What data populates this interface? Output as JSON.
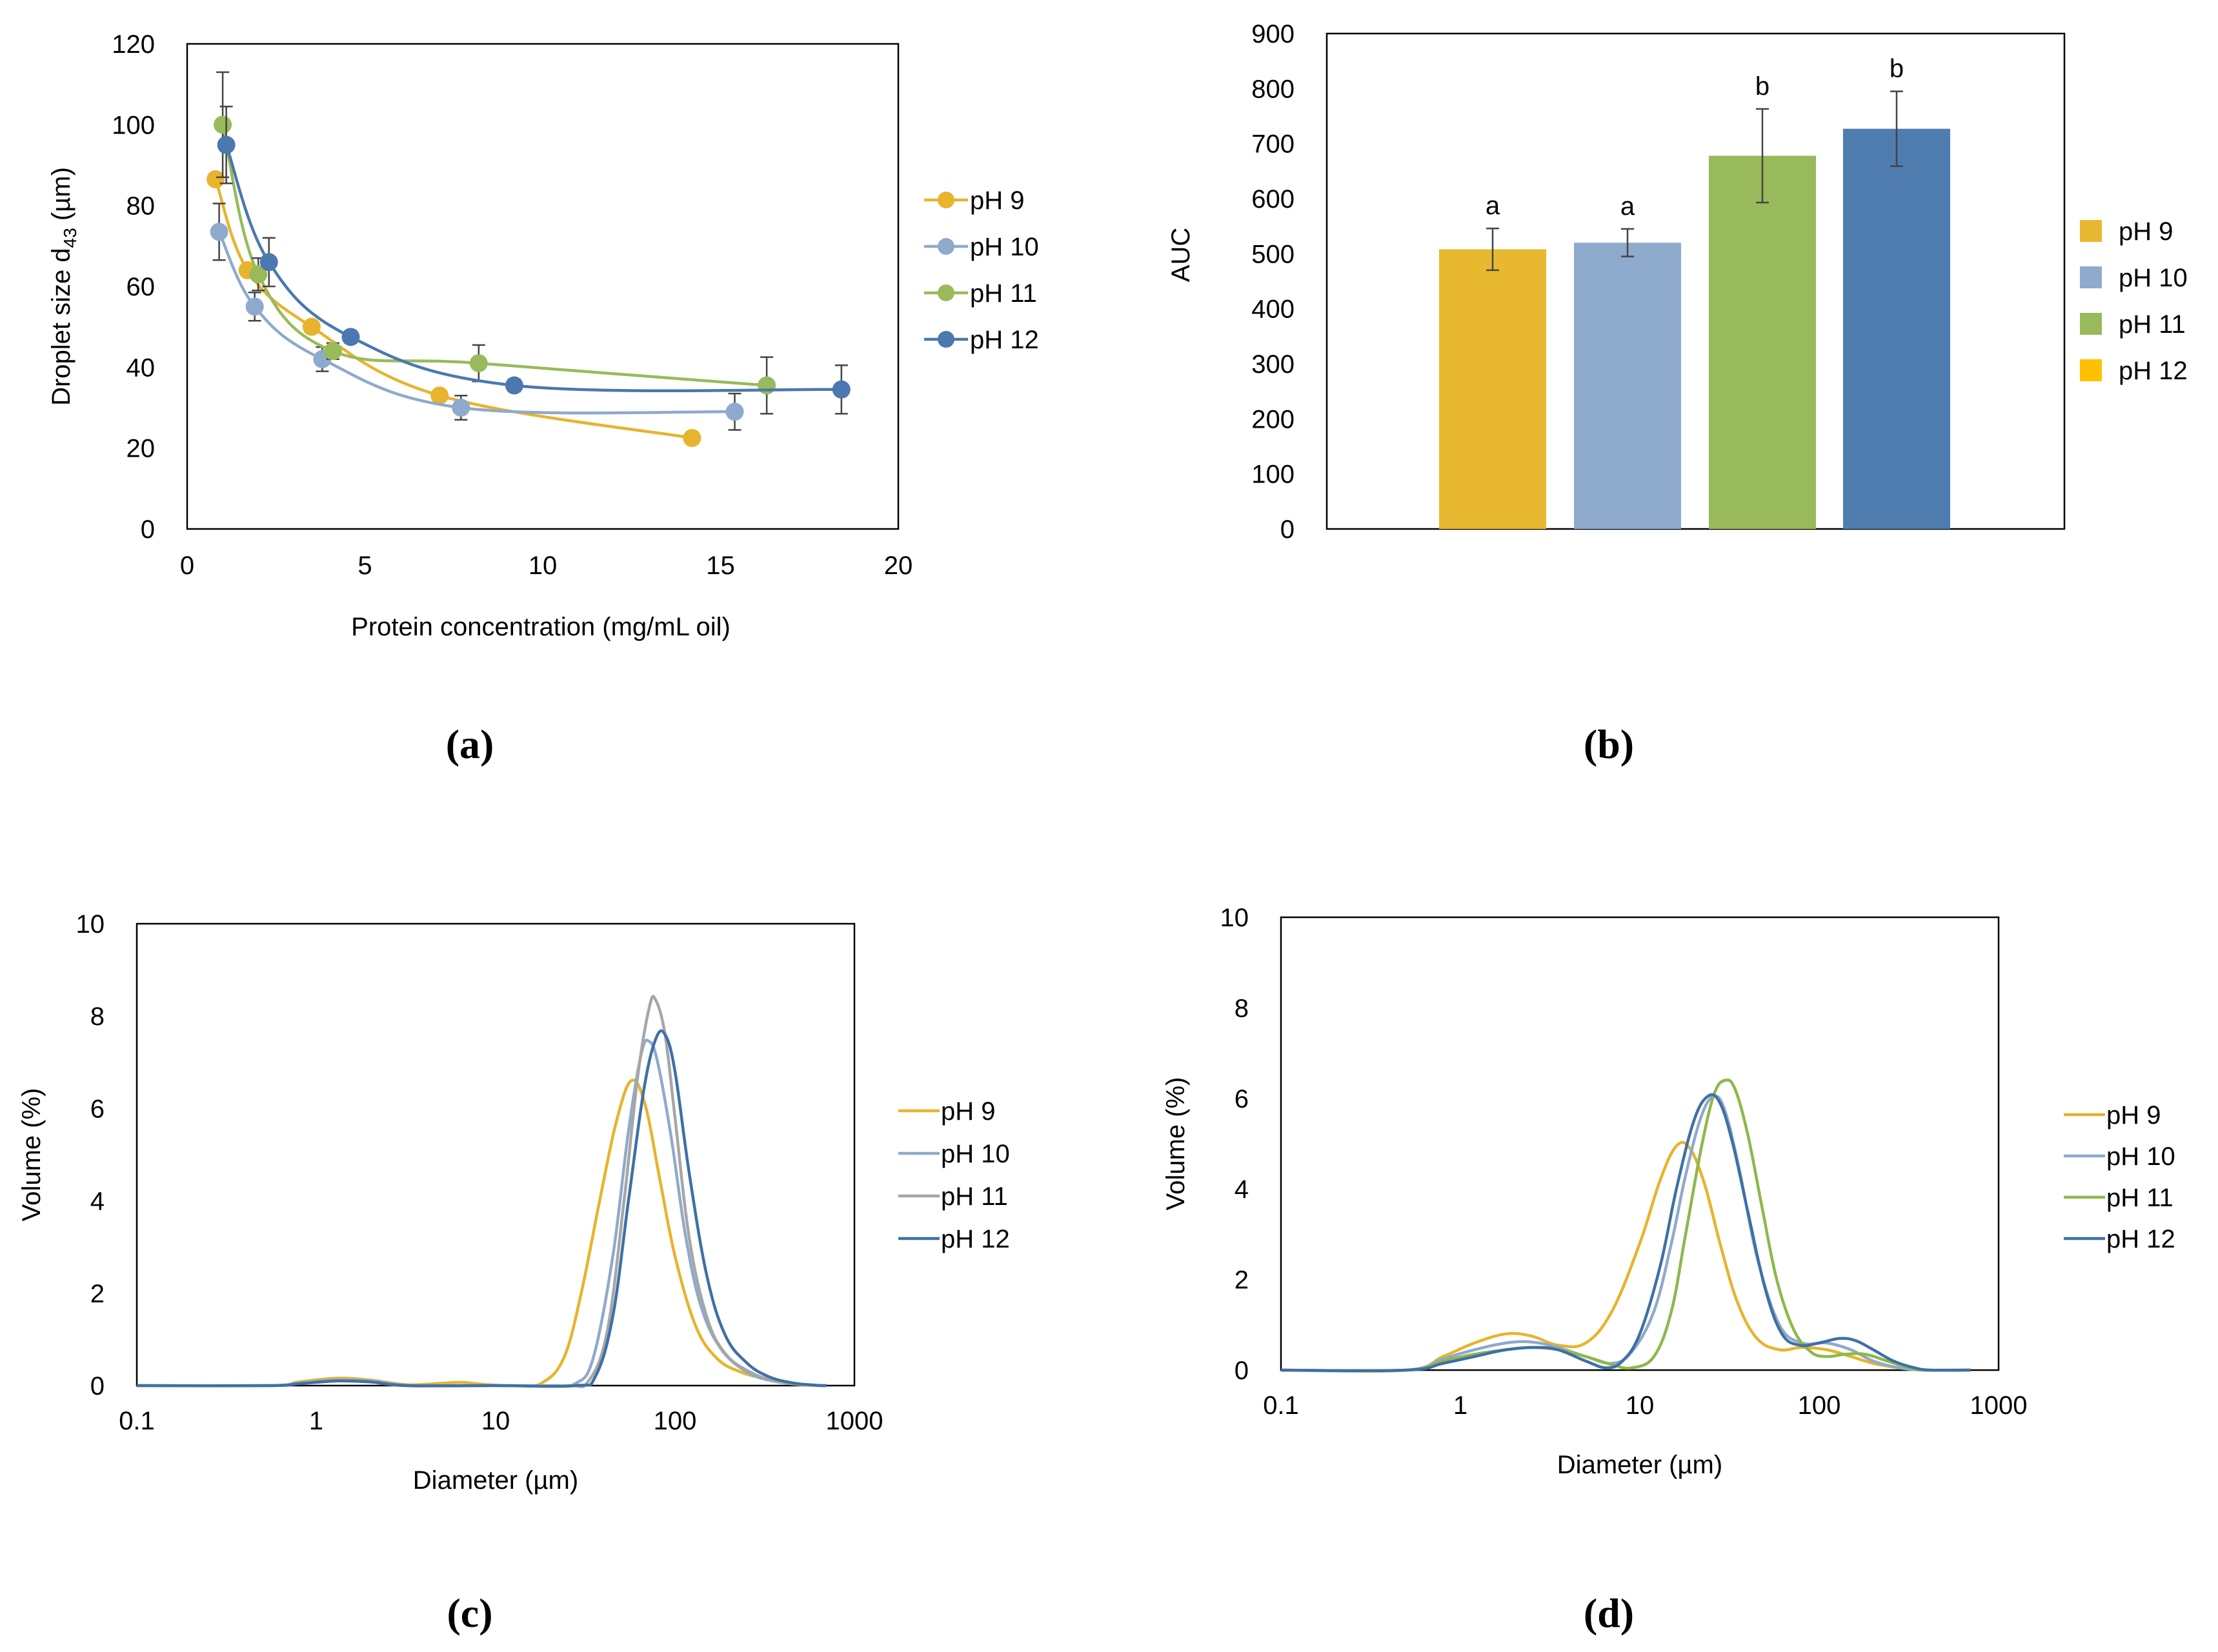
{
  "chart_data": [
    {
      "panel": "(a)",
      "type": "scatter",
      "xlabel": "Protein concentration  (mg/mL oil)",
      "ylabel_main": "Droplet size d",
      "ylabel_sub": "43",
      "ylabel_unit": " (µm)",
      "xlim": [
        0,
        20
      ],
      "ylim": [
        0,
        120
      ],
      "xticks": [
        0,
        5,
        10,
        15,
        20
      ],
      "yticks": [
        0,
        20,
        40,
        60,
        80,
        100,
        120
      ],
      "grid": false,
      "legend_position": "right",
      "series": [
        {
          "name": "pH 9",
          "color": "#E8B32D",
          "x": [
            0.8,
            1.7,
            3.5,
            7.1,
            14.2
          ],
          "y": [
            86.5,
            64,
            50,
            33,
            22.5
          ],
          "err": [
            0,
            0,
            0,
            0,
            0
          ]
        },
        {
          "name": "pH 10",
          "color": "#8EAACC",
          "x": [
            0.9,
            1.9,
            3.8,
            7.7,
            15.4
          ],
          "y": [
            73.5,
            55,
            42,
            30,
            29
          ],
          "err": [
            7,
            3.5,
            3,
            3,
            4.5
          ]
        },
        {
          "name": "pH 11",
          "color": "#99BA5A",
          "x": [
            1.0,
            2.0,
            4.1,
            8.2,
            16.3
          ],
          "y": [
            100,
            63,
            44,
            41,
            35.5
          ],
          "err": [
            13,
            4,
            2,
            4.5,
            7
          ]
        },
        {
          "name": "pH 12",
          "color": "#4A78AF",
          "x": [
            1.1,
            2.3,
            4.6,
            9.2,
            18.4
          ],
          "y": [
            95,
            66,
            47.5,
            35.5,
            34.5
          ],
          "err": [
            9.5,
            6,
            1.5,
            1.5,
            6
          ]
        }
      ]
    },
    {
      "panel": "(b)",
      "type": "bar",
      "ylabel": "AUC",
      "ylim": [
        0,
        900
      ],
      "yticks": [
        0,
        100,
        200,
        300,
        400,
        500,
        600,
        700,
        800,
        900
      ],
      "grid": false,
      "legend_position": "right",
      "categories": [
        "pH 9",
        "pH 10",
        "pH 11",
        "pH 12"
      ],
      "values": [
        508,
        520,
        678,
        727
      ],
      "errors": [
        38,
        25,
        85,
        68
      ],
      "letters": [
        "a",
        "a",
        "b",
        "b"
      ],
      "bar_colors": [
        "#E8B830",
        "#8EAACC",
        "#99BA5A",
        "#4F7DB0"
      ],
      "legend_colors": [
        "#E8B830",
        "#8EAACC",
        "#99BA5A",
        "#FFC000"
      ]
    },
    {
      "panel": "(c)",
      "type": "line",
      "xlabel": "Diameter (µm)",
      "ylabel": "Volume (%)",
      "xscale": "log",
      "xlim": [
        0.1,
        1000
      ],
      "ylim": [
        0,
        10
      ],
      "xticks": [
        0.1,
        1,
        10,
        100,
        1000
      ],
      "xticklabels": [
        "0.1",
        "1",
        "10",
        "100",
        "1000"
      ],
      "yticks": [
        0,
        2,
        4,
        6,
        8,
        10
      ],
      "grid": false,
      "legend_position": "right",
      "series": [
        {
          "name": "pH 9",
          "color": "#E8B32D",
          "x": [
            0.1,
            0.55,
            0.8,
            1.3,
            2,
            3.2,
            5,
            6.5,
            9,
            13,
            18,
            24,
            30,
            38,
            47,
            57,
            68,
            82,
            100,
            130,
            170,
            230,
            320,
            450,
            630,
            700
          ],
          "y": [
            0,
            0,
            0.08,
            0.16,
            0.12,
            0.02,
            0.05,
            0.07,
            0.02,
            0,
            0.05,
            0.6,
            2.0,
            4.0,
            5.7,
            6.6,
            6.1,
            4.5,
            2.8,
            1.3,
            0.6,
            0.3,
            0.15,
            0.05,
            0,
            0
          ]
        },
        {
          "name": "pH 10",
          "color": "#8EAACC",
          "x": [
            0.1,
            0.55,
            0.8,
            1.3,
            2,
            3.2,
            5,
            10,
            20,
            28,
            35,
            45,
            55,
            65,
            72,
            80,
            95,
            115,
            140,
            180,
            250,
            350,
            500,
            650,
            700
          ],
          "y": [
            0,
            0,
            0.06,
            0.12,
            0.1,
            0,
            0,
            0,
            0,
            0.05,
            0.6,
            2.8,
            5.5,
            7.2,
            7.45,
            7.0,
            5.4,
            3.2,
            1.7,
            0.8,
            0.3,
            0.1,
            0.03,
            0,
            0
          ]
        },
        {
          "name": "pH 11",
          "color": "#A6A6A6",
          "x": [
            0.1,
            0.55,
            0.8,
            1.3,
            2,
            3.2,
            10,
            25,
            33,
            42,
            52,
            62,
            72,
            78,
            88,
            100,
            120,
            150,
            190,
            260,
            360,
            500,
            650,
            700
          ],
          "y": [
            0,
            0,
            0.05,
            0.1,
            0.08,
            0,
            0,
            0,
            0.1,
            1.2,
            4.0,
            6.7,
            8.2,
            8.35,
            7.6,
            5.8,
            3.2,
            1.5,
            0.7,
            0.3,
            0.1,
            0.02,
            0,
            0
          ]
        },
        {
          "name": "pH 12",
          "color": "#3E70A6",
          "x": [
            0.1,
            0.55,
            0.8,
            1.3,
            2,
            3.2,
            10,
            28,
            36,
            45,
            55,
            67,
            78,
            88,
            100,
            120,
            150,
            190,
            250,
            330,
            450,
            600,
            700
          ],
          "y": [
            0,
            0,
            0.04,
            0.1,
            0.08,
            0,
            0,
            0,
            0.2,
            1.5,
            4.0,
            6.4,
            7.5,
            7.6,
            6.8,
            4.6,
            2.4,
            1.1,
            0.5,
            0.2,
            0.06,
            0.01,
            0
          ]
        }
      ]
    },
    {
      "panel": "(d)",
      "type": "line",
      "xlabel": "Diameter (µm)",
      "ylabel": "Volume (%)",
      "xscale": "log",
      "xlim": [
        0.1,
        1000
      ],
      "ylim": [
        0,
        10
      ],
      "xticks": [
        0.1,
        1,
        10,
        100,
        1000
      ],
      "xticklabels": [
        "0.1",
        "1",
        "10",
        "100",
        "1000"
      ],
      "yticks": [
        0,
        2,
        4,
        6,
        8,
        10
      ],
      "grid": false,
      "legend_position": "right",
      "series": [
        {
          "name": "pH 9",
          "color": "#E8B32D",
          "x": [
            0.1,
            0.5,
            0.8,
            1.2,
            1.8,
            2.5,
            3.5,
            5,
            7,
            10,
            13,
            16,
            19,
            23,
            28,
            35,
            45,
            60,
            80,
            110,
            150,
            200,
            280,
            380,
            500,
            700
          ],
          "y": [
            0,
            0,
            0.3,
            0.6,
            0.8,
            0.75,
            0.55,
            0.6,
            1.3,
            2.8,
            4.2,
            4.95,
            4.9,
            4.1,
            2.8,
            1.5,
            0.7,
            0.45,
            0.5,
            0.45,
            0.3,
            0.15,
            0.05,
            0,
            0,
            0
          ]
        },
        {
          "name": "pH 10",
          "color": "#8EAACC",
          "x": [
            0.1,
            0.5,
            0.8,
            1.2,
            1.8,
            2.5,
            3.5,
            5,
            7,
            9,
            12,
            15,
            18,
            22,
            26,
            30,
            36,
            45,
            60,
            80,
            110,
            150,
            200,
            280,
            380,
            500,
            700
          ],
          "y": [
            0,
            0,
            0.25,
            0.45,
            0.6,
            0.62,
            0.5,
            0.3,
            0.15,
            0.4,
            1.3,
            2.8,
            4.3,
            5.6,
            6.05,
            5.7,
            4.4,
            2.5,
            1.0,
            0.6,
            0.6,
            0.45,
            0.2,
            0.05,
            0,
            0,
            0
          ]
        },
        {
          "name": "pH 11",
          "color": "#8DB84A",
          "x": [
            0.1,
            0.5,
            0.8,
            1.2,
            1.8,
            2.5,
            3.5,
            5,
            7,
            9,
            12,
            15,
            18,
            22,
            26,
            30,
            34,
            40,
            48,
            58,
            72,
            90,
            110,
            140,
            180,
            240,
            320,
            400,
            700
          ],
          "y": [
            0,
            0,
            0.2,
            0.35,
            0.45,
            0.5,
            0.45,
            0.3,
            0.12,
            0.05,
            0.3,
            1.3,
            3.0,
            4.9,
            6.1,
            6.4,
            6.2,
            5.2,
            3.6,
            2.0,
            0.9,
            0.4,
            0.3,
            0.35,
            0.35,
            0.2,
            0.05,
            0,
            0
          ]
        },
        {
          "name": "pH 12",
          "color": "#3E70A6",
          "x": [
            0.1,
            0.5,
            0.8,
            1.2,
            1.8,
            2.6,
            3.5,
            5,
            6.5,
            8,
            10,
            13,
            16,
            20,
            24,
            28,
            33,
            40,
            50,
            62,
            78,
            100,
            130,
            160,
            200,
            260,
            340,
            420,
            700
          ],
          "y": [
            0,
            0,
            0.15,
            0.3,
            0.45,
            0.5,
            0.45,
            0.2,
            0.05,
            0.2,
            0.8,
            2.3,
            4.0,
            5.5,
            6.05,
            5.9,
            5.0,
            3.5,
            1.8,
            0.8,
            0.55,
            0.6,
            0.7,
            0.65,
            0.45,
            0.2,
            0.05,
            0,
            0
          ]
        }
      ]
    }
  ],
  "panel_labels": [
    "(a)",
    "(b)",
    "(c)",
    "(d)"
  ]
}
